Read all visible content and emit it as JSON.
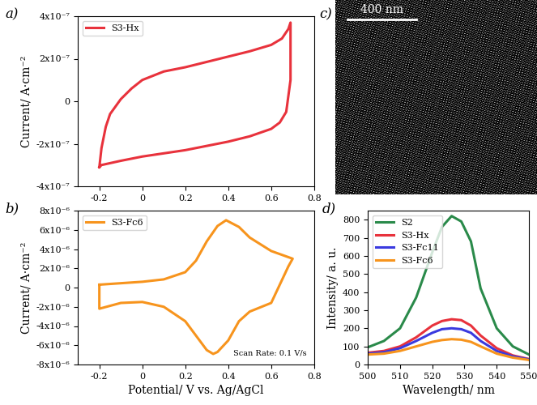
{
  "chart_data": [
    {
      "type": "line",
      "title": "a)",
      "x": [
        -0.2,
        -0.19,
        -0.17,
        -0.15,
        -0.1,
        -0.05,
        0.0,
        0.1,
        0.2,
        0.3,
        0.4,
        0.5,
        0.6,
        0.65,
        0.68,
        0.69,
        0.69,
        0.67,
        0.64,
        0.6,
        0.5,
        0.4,
        0.3,
        0.2,
        0.1,
        0.0,
        -0.1,
        -0.19,
        -0.2
      ],
      "series": [
        {
          "name": "S3-Hx",
          "color": "#e8323c",
          "values": [
            -3.1e-07,
            -2.2e-07,
            -1.2e-07,
            -6e-08,
            1e-08,
            6e-08,
            1e-07,
            1.4e-07,
            1.6e-07,
            1.85e-07,
            2.1e-07,
            2.35e-07,
            2.65e-07,
            2.95e-07,
            3.4e-07,
            3.7e-07,
            1e-07,
            -5e-08,
            -1e-07,
            -1.3e-07,
            -1.65e-07,
            -1.9e-07,
            -2.1e-07,
            -2.3e-07,
            -2.45e-07,
            -2.6e-07,
            -2.8e-07,
            -3e-07,
            -3.1e-07
          ]
        }
      ],
      "ylabel": "Current/ A·cm⁻²",
      "xlim": [
        -0.3,
        0.8
      ],
      "xticks": [
        -0.2,
        0,
        0.2,
        0.4,
        0.6,
        0.8
      ],
      "ylim": [
        -4e-07,
        4e-07
      ],
      "yticks": [
        {
          "value": -4e-07,
          "label": "-4x10⁻⁷"
        },
        {
          "value": -2e-07,
          "label": "-2x10⁻⁷"
        },
        {
          "value": 0,
          "label": "0"
        },
        {
          "value": 2e-07,
          "label": "2x10⁻⁷"
        },
        {
          "value": 4e-07,
          "label": "4x10⁻⁷"
        }
      ],
      "legend": "upper left"
    },
    {
      "type": "line",
      "title": "c)",
      "annotations": [
        "400 nm"
      ],
      "tick_labels": false
    },
    {
      "type": "line",
      "title": "b)",
      "x": [
        -0.2,
        -0.1,
        0.0,
        0.1,
        0.2,
        0.25,
        0.3,
        0.35,
        0.39,
        0.45,
        0.5,
        0.6,
        0.7,
        0.68,
        0.6,
        0.5,
        0.45,
        0.4,
        0.35,
        0.33,
        0.3,
        0.25,
        0.2,
        0.1,
        0.0,
        -0.1,
        -0.2,
        -0.2
      ],
      "series": [
        {
          "name": "S3-Fc6",
          "color": "#f7941d",
          "values": [
            3e-07,
            4.5e-07,
            6e-07,
            8.5e-07,
            1.6e-06,
            2.8e-06,
            4.8e-06,
            6.4e-06,
            7e-06,
            6.3e-06,
            5.2e-06,
            3.8e-06,
            3e-06,
            2.2e-06,
            -1.6e-06,
            -2.5e-06,
            -3.5e-06,
            -5.5e-06,
            -6.7e-06,
            -6.9e-06,
            -6.5e-06,
            -5e-06,
            -3.5e-06,
            -2e-06,
            -1.5e-06,
            -1.6e-06,
            -2.2e-06,
            3e-07
          ]
        }
      ],
      "xlabel": "Potential/ V vs. Ag/AgCl",
      "ylabel": "Current/ A·cm⁻²",
      "xlim": [
        -0.3,
        0.8
      ],
      "xticks": [
        -0.2,
        0,
        0.2,
        0.4,
        0.6,
        0.8
      ],
      "ylim": [
        -8e-06,
        8e-06
      ],
      "yticks": [
        {
          "value": -8e-06,
          "label": "-8x10⁻⁶"
        },
        {
          "value": -6e-06,
          "label": "-6x10⁻⁶"
        },
        {
          "value": -4e-06,
          "label": "-4x10⁻⁶"
        },
        {
          "value": -2e-06,
          "label": "-2x10⁻⁶"
        },
        {
          "value": 0,
          "label": "0"
        },
        {
          "value": 2e-06,
          "label": "2x10⁻⁶"
        },
        {
          "value": 4e-06,
          "label": "4x10⁻⁶"
        },
        {
          "value": 6e-06,
          "label": "6x10⁻⁶"
        },
        {
          "value": 8e-06,
          "label": "8x10⁻⁶"
        }
      ],
      "annotations": [
        "Scan Rate: 0.1 V/s"
      ],
      "legend": "upper left"
    },
    {
      "type": "line",
      "title": "d)",
      "x": [
        500,
        505,
        510,
        515,
        520,
        523,
        526,
        529,
        532,
        535,
        540,
        545,
        550
      ],
      "series": [
        {
          "name": "S2",
          "color": "#2a8a4a",
          "values": [
            95,
            130,
            200,
            370,
            620,
            760,
            820,
            790,
            680,
            420,
            200,
            100,
            55
          ]
        },
        {
          "name": "S3-Hx",
          "color": "#e8323c",
          "values": [
            65,
            75,
            100,
            150,
            215,
            240,
            250,
            245,
            215,
            160,
            90,
            50,
            30
          ]
        },
        {
          "name": "S3-Fc11",
          "color": "#3a3adf",
          "values": [
            60,
            68,
            90,
            130,
            175,
            195,
            200,
            195,
            175,
            130,
            75,
            45,
            28
          ]
        },
        {
          "name": "S3-Fc6",
          "color": "#f7941d",
          "values": [
            55,
            60,
            75,
            100,
            125,
            135,
            140,
            137,
            125,
            100,
            60,
            38,
            25
          ]
        }
      ],
      "xlabel": "Wavelength/ nm",
      "ylabel": "Intensity/ a. u.",
      "xlim": [
        500,
        550
      ],
      "xticks": [
        500,
        510,
        520,
        530,
        540,
        550
      ],
      "ylim": [
        0,
        850
      ],
      "yticks": [
        0,
        100,
        200,
        300,
        400,
        500,
        600,
        700,
        800
      ],
      "legend": "upper left"
    }
  ]
}
